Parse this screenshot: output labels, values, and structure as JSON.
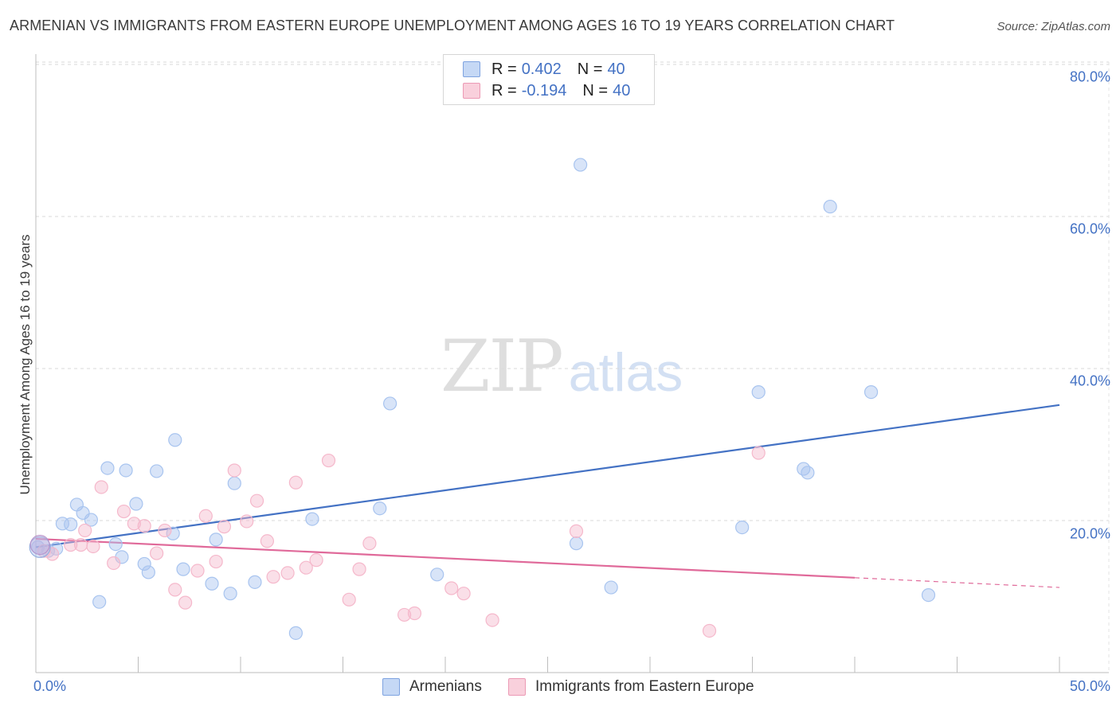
{
  "header": {
    "title": "ARMENIAN VS IMMIGRANTS FROM EASTERN EUROPE UNEMPLOYMENT AMONG AGES 16 TO 19 YEARS CORRELATION CHART",
    "source": "Source: ZipAtlas.com"
  },
  "watermark": {
    "zip": "ZIP",
    "atlas": "atlas"
  },
  "legend": {
    "rows": [
      {
        "r_label": "R =",
        "r_value": "0.402",
        "n_label": "N =",
        "n_value": "40",
        "color": "#a8c4ef"
      },
      {
        "r_label": "R =",
        "r_value": "-0.194",
        "n_label": "N =",
        "n_value": "40",
        "color": "#f5b8cb"
      }
    ]
  },
  "bottom_legend": [
    {
      "label": "Armenians",
      "color": "#a8c4ef"
    },
    {
      "label": "Immigrants from Eastern Europe",
      "color": "#f5b8cb"
    }
  ],
  "chart_data": {
    "type": "scatter",
    "title": "ARMENIAN VS IMMIGRANTS FROM EASTERN EUROPE UNEMPLOYMENT AMONG AGES 16 TO 19 YEARS CORRELATION CHART",
    "xlabel": "",
    "ylabel": "Unemployment Among Ages 16 to 19 years",
    "xlim": [
      0,
      50
    ],
    "ylim": [
      0,
      82
    ],
    "x_tick_labels": [
      "0.0%",
      "50.0%"
    ],
    "y_ticks": [
      20,
      40,
      60,
      80
    ],
    "y_tick_labels": [
      "20.0%",
      "40.0%",
      "60.0%",
      "80.0%"
    ],
    "grid": true,
    "series": [
      {
        "name": "Armenians",
        "color": "#4472c4",
        "fill": "#a8c4ef",
        "trend": {
          "x0": 0,
          "y0": 16.5,
          "x1": 50,
          "y1": 35.2,
          "dash_from": null
        },
        "points": [
          [
            0.1,
            16.5
          ],
          [
            0.6,
            16.0
          ],
          [
            1.0,
            16.3
          ],
          [
            1.3,
            19.6
          ],
          [
            1.7,
            19.5
          ],
          [
            2.0,
            22.1
          ],
          [
            2.3,
            21.0
          ],
          [
            2.7,
            20.1
          ],
          [
            3.1,
            9.3
          ],
          [
            3.5,
            26.9
          ],
          [
            3.9,
            16.9
          ],
          [
            4.2,
            15.2
          ],
          [
            4.4,
            26.6
          ],
          [
            4.9,
            22.2
          ],
          [
            5.3,
            14.3
          ],
          [
            5.5,
            13.2
          ],
          [
            5.9,
            26.5
          ],
          [
            6.7,
            18.3
          ],
          [
            6.8,
            30.6
          ],
          [
            7.2,
            13.6
          ],
          [
            8.6,
            11.7
          ],
          [
            8.8,
            17.5
          ],
          [
            9.5,
            10.4
          ],
          [
            9.7,
            24.9
          ],
          [
            10.7,
            11.9
          ],
          [
            12.7,
            5.2
          ],
          [
            13.5,
            20.2
          ],
          [
            16.8,
            21.6
          ],
          [
            17.3,
            35.4
          ],
          [
            19.6,
            12.9
          ],
          [
            26.4,
            17.0
          ],
          [
            26.6,
            66.8
          ],
          [
            28.1,
            11.2
          ],
          [
            34.5,
            19.1
          ],
          [
            35.3,
            36.9
          ],
          [
            37.5,
            26.8
          ],
          [
            37.7,
            26.3
          ],
          [
            38.8,
            61.3
          ],
          [
            40.8,
            36.9
          ],
          [
            43.6,
            10.2
          ]
        ]
      },
      {
        "name": "Immigrants from Eastern Europe",
        "color": "#e06a9a",
        "fill": "#f5b8cb",
        "trend": {
          "x0": 0,
          "y0": 17.6,
          "x1": 50,
          "y1": 11.2,
          "dash_from": 40.0
        },
        "points": [
          [
            0.4,
            16.0
          ],
          [
            0.8,
            15.6
          ],
          [
            1.7,
            16.8
          ],
          [
            2.2,
            16.8
          ],
          [
            2.4,
            18.7
          ],
          [
            2.8,
            16.6
          ],
          [
            3.2,
            24.4
          ],
          [
            3.8,
            14.4
          ],
          [
            4.3,
            21.2
          ],
          [
            4.8,
            19.6
          ],
          [
            5.3,
            19.3
          ],
          [
            5.9,
            15.7
          ],
          [
            6.3,
            18.7
          ],
          [
            6.8,
            10.9
          ],
          [
            7.3,
            9.2
          ],
          [
            7.9,
            13.4
          ],
          [
            8.3,
            20.6
          ],
          [
            8.8,
            14.6
          ],
          [
            9.2,
            19.2
          ],
          [
            9.7,
            26.6
          ],
          [
            10.3,
            19.9
          ],
          [
            10.8,
            22.6
          ],
          [
            11.3,
            17.3
          ],
          [
            11.6,
            12.6
          ],
          [
            12.3,
            13.1
          ],
          [
            12.7,
            25.0
          ],
          [
            13.2,
            13.8
          ],
          [
            13.7,
            14.8
          ],
          [
            14.3,
            27.9
          ],
          [
            15.3,
            9.6
          ],
          [
            15.8,
            13.6
          ],
          [
            16.3,
            17.0
          ],
          [
            18.0,
            7.6
          ],
          [
            18.5,
            7.8
          ],
          [
            20.3,
            11.1
          ],
          [
            20.9,
            10.4
          ],
          [
            22.3,
            6.9
          ],
          [
            26.4,
            18.6
          ],
          [
            32.9,
            5.5
          ],
          [
            35.3,
            28.9
          ]
        ]
      }
    ]
  }
}
